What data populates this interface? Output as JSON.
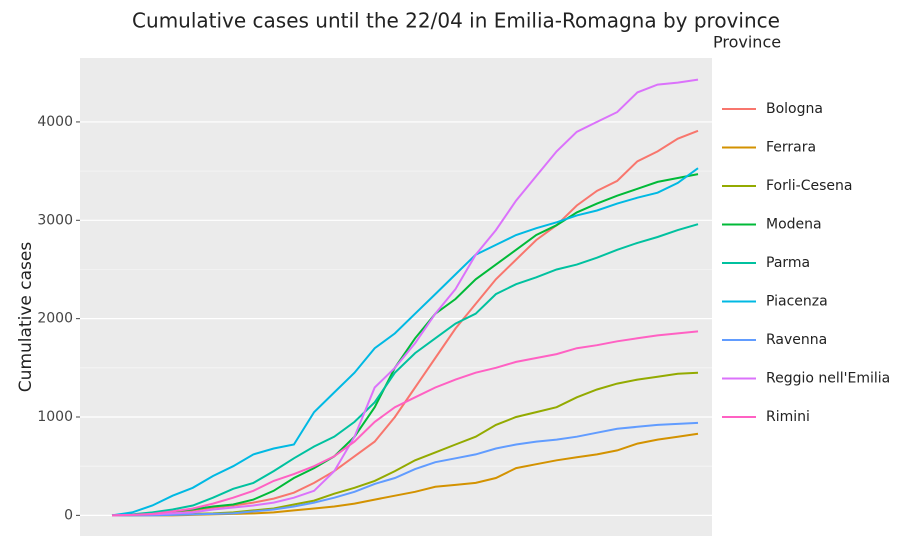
{
  "chart_data": {
    "type": "line",
    "title": "Cumulative cases until the 22/04 in Emilia-Romagna by province",
    "ylabel": "Cumulative cases",
    "legend_title": "Province",
    "legend": "right",
    "grid": true,
    "categories": [
      null,
      null,
      null,
      null,
      null,
      null,
      null,
      null,
      null,
      null,
      null,
      null,
      null,
      null,
      null,
      null,
      null,
      null,
      null,
      null,
      null,
      null,
      null,
      null,
      null,
      null,
      null,
      null,
      null,
      null
    ],
    "ylim": [
      -220,
      4650
    ],
    "yticks": [
      0,
      1000,
      2000,
      3000,
      4000
    ],
    "series": [
      {
        "name": "Bologna",
        "color": "#F8766D",
        "values": [
          0,
          5,
          10,
          20,
          50,
          80,
          100,
          130,
          170,
          230,
          330,
          450,
          600,
          750,
          1000,
          1300,
          1600,
          1900,
          2150,
          2400,
          2600,
          2800,
          2950,
          3150,
          3300,
          3400,
          3600,
          3700,
          3830,
          3910
        ]
      },
      {
        "name": "Ferrara",
        "color": "#D39200",
        "values": [
          0,
          0,
          0,
          0,
          5,
          10,
          15,
          20,
          30,
          50,
          70,
          90,
          120,
          160,
          200,
          240,
          290,
          310,
          330,
          380,
          480,
          520,
          560,
          590,
          620,
          660,
          730,
          770,
          800,
          830
        ]
      },
      {
        "name": "Forli-Cesena",
        "color": "#93AA00",
        "values": [
          0,
          0,
          5,
          10,
          15,
          20,
          30,
          50,
          70,
          110,
          150,
          220,
          280,
          350,
          450,
          560,
          640,
          720,
          800,
          920,
          1000,
          1050,
          1100,
          1200,
          1280,
          1340,
          1380,
          1410,
          1440,
          1450
        ]
      },
      {
        "name": "Modena",
        "color": "#00BA38",
        "values": [
          0,
          5,
          20,
          40,
          60,
          90,
          110,
          160,
          250,
          380,
          480,
          600,
          800,
          1100,
          1500,
          1800,
          2050,
          2200,
          2400,
          2550,
          2700,
          2850,
          2950,
          3080,
          3170,
          3250,
          3320,
          3390,
          3430,
          3470
        ]
      },
      {
        "name": "Parma",
        "color": "#00C19F",
        "values": [
          0,
          10,
          30,
          60,
          100,
          180,
          270,
          330,
          450,
          580,
          700,
          800,
          950,
          1150,
          1450,
          1650,
          1800,
          1950,
          2050,
          2250,
          2350,
          2420,
          2500,
          2550,
          2620,
          2700,
          2770,
          2830,
          2900,
          2960
        ]
      },
      {
        "name": "Piacenza",
        "color": "#00B9E3",
        "values": [
          0,
          30,
          100,
          200,
          280,
          400,
          500,
          620,
          680,
          720,
          1050,
          1250,
          1450,
          1700,
          1850,
          2050,
          2250,
          2450,
          2650,
          2750,
          2850,
          2920,
          2980,
          3050,
          3100,
          3170,
          3230,
          3280,
          3380,
          3530
        ]
      },
      {
        "name": "Ravenna",
        "color": "#619CFF",
        "values": [
          0,
          0,
          0,
          5,
          10,
          15,
          20,
          40,
          60,
          90,
          130,
          180,
          240,
          320,
          380,
          470,
          540,
          580,
          620,
          680,
          720,
          750,
          770,
          800,
          840,
          880,
          900,
          920,
          930,
          940
        ]
      },
      {
        "name": "Reggio nell'Emilia",
        "color": "#DB72FB",
        "values": [
          0,
          5,
          10,
          20,
          30,
          60,
          80,
          100,
          130,
          180,
          250,
          450,
          800,
          1300,
          1500,
          1750,
          2050,
          2300,
          2650,
          2900,
          3200,
          3450,
          3700,
          3900,
          4000,
          4100,
          4300,
          4380,
          4400,
          4430
        ]
      },
      {
        "name": "Rimini",
        "color": "#FF61C3",
        "values": [
          0,
          5,
          15,
          40,
          70,
          120,
          180,
          250,
          350,
          420,
          500,
          600,
          750,
          950,
          1100,
          1200,
          1300,
          1380,
          1450,
          1500,
          1560,
          1600,
          1640,
          1700,
          1730,
          1770,
          1800,
          1830,
          1850,
          1870
        ]
      }
    ]
  }
}
